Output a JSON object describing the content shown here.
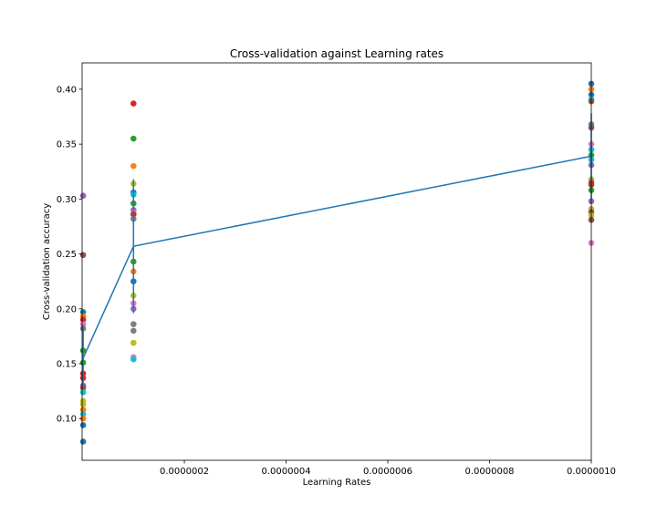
{
  "chart_data": {
    "type": "scatter",
    "title": "Cross-validation against Learning rates",
    "xlabel": "Learning Rates",
    "ylabel": "Cross-validation accuracy",
    "xlim": [
      -1e-09,
      1e-06
    ],
    "ylim": [
      0.062,
      0.424
    ],
    "x_ticks": [
      2e-07,
      4e-07,
      6e-07,
      8e-07,
      1e-06
    ],
    "x_tick_labels": [
      "0.0000002",
      "0.0000004",
      "0.0000006",
      "0.0000008",
      "0.0000010"
    ],
    "y_ticks": [
      0.1,
      0.15,
      0.2,
      0.25,
      0.3,
      0.35,
      0.4
    ],
    "y_tick_labels": [
      "0.10",
      "0.15",
      "0.20",
      "0.25",
      "0.30",
      "0.35",
      "0.40"
    ],
    "grid": false,
    "legend": "none",
    "mean_line": {
      "color": "#1f77b4",
      "x": [
        1e-09,
        1e-07,
        1e-06
      ],
      "y": [
        0.155,
        0.257,
        0.339
      ],
      "errorbars": [
        {
          "x": 1e-09,
          "low": 0.13,
          "high": 0.185
        },
        {
          "x": 1e-07,
          "low": 0.196,
          "high": 0.318
        },
        {
          "x": 1e-06,
          "low": 0.3,
          "high": 0.378
        }
      ]
    },
    "series": [
      {
        "x": 1e-09,
        "points": [
          {
            "y": 0.303,
            "color": "#9467bd"
          },
          {
            "y": 0.249,
            "color": "#8c564b"
          },
          {
            "y": 0.197,
            "color": "#1f77b4"
          },
          {
            "y": 0.193,
            "color": "#ff7f0e"
          },
          {
            "y": 0.19,
            "color": "#d62728"
          },
          {
            "y": 0.186,
            "color": "#e377c2"
          },
          {
            "y": 0.182,
            "color": "#7f7f7f"
          },
          {
            "y": 0.162,
            "color": "#2ca02c"
          },
          {
            "y": 0.151,
            "color": "#2ca02c"
          },
          {
            "y": 0.141,
            "color": "#d62728"
          },
          {
            "y": 0.137,
            "color": "#d62728"
          },
          {
            "y": 0.13,
            "color": "#9467bd"
          },
          {
            "y": 0.128,
            "color": "#8c564b"
          },
          {
            "y": 0.124,
            "color": "#17becf"
          },
          {
            "y": 0.116,
            "color": "#bcbd22"
          },
          {
            "y": 0.113,
            "color": "#bcbd22"
          },
          {
            "y": 0.108,
            "color": "#ff7f0e"
          },
          {
            "y": 0.104,
            "color": "#17becf"
          },
          {
            "y": 0.1,
            "color": "#ff7f0e"
          },
          {
            "y": 0.094,
            "color": "#1f77b4"
          },
          {
            "y": 0.079,
            "color": "#1f77b4"
          }
        ]
      },
      {
        "x": 1e-07,
        "points": [
          {
            "y": 0.387,
            "color": "#d62728"
          },
          {
            "y": 0.355,
            "color": "#2ca02c"
          },
          {
            "y": 0.33,
            "color": "#ff7f0e"
          },
          {
            "y": 0.314,
            "color": "#bcbd22"
          },
          {
            "y": 0.306,
            "color": "#1f77b4"
          },
          {
            "y": 0.304,
            "color": "#17becf"
          },
          {
            "y": 0.296,
            "color": "#2ca02c"
          },
          {
            "y": 0.29,
            "color": "#9467bd"
          },
          {
            "y": 0.288,
            "color": "#e377c2"
          },
          {
            "y": 0.286,
            "color": "#d62728"
          },
          {
            "y": 0.282,
            "color": "#7f7f7f"
          },
          {
            "y": 0.243,
            "color": "#2ca02c"
          },
          {
            "y": 0.234,
            "color": "#ff7f0e"
          },
          {
            "y": 0.225,
            "color": "#1f77b4"
          },
          {
            "y": 0.212,
            "color": "#bcbd22"
          },
          {
            "y": 0.205,
            "color": "#e377c2"
          },
          {
            "y": 0.2,
            "color": "#9467bd"
          },
          {
            "y": 0.186,
            "color": "#7f7f7f"
          },
          {
            "y": 0.18,
            "color": "#7f7f7f"
          },
          {
            "y": 0.169,
            "color": "#bcbd22"
          },
          {
            "y": 0.156,
            "color": "#e377c2"
          },
          {
            "y": 0.154,
            "color": "#17becf"
          }
        ]
      },
      {
        "x": 1e-06,
        "points": [
          {
            "y": 0.405,
            "color": "#1f77b4"
          },
          {
            "y": 0.4,
            "color": "#ff7f0e"
          },
          {
            "y": 0.395,
            "color": "#1f77b4"
          },
          {
            "y": 0.391,
            "color": "#17becf"
          },
          {
            "y": 0.389,
            "color": "#8c564b"
          },
          {
            "y": 0.368,
            "color": "#7f7f7f"
          },
          {
            "y": 0.365,
            "color": "#8c564b"
          },
          {
            "y": 0.35,
            "color": "#e377c2"
          },
          {
            "y": 0.345,
            "color": "#17becf"
          },
          {
            "y": 0.34,
            "color": "#2ca02c"
          },
          {
            "y": 0.336,
            "color": "#17becf"
          },
          {
            "y": 0.331,
            "color": "#9467bd"
          },
          {
            "y": 0.318,
            "color": "#bcbd22"
          },
          {
            "y": 0.315,
            "color": "#8c564b"
          },
          {
            "y": 0.313,
            "color": "#d62728"
          },
          {
            "y": 0.308,
            "color": "#2ca02c"
          },
          {
            "y": 0.298,
            "color": "#9467bd"
          },
          {
            "y": 0.291,
            "color": "#bcbd22"
          },
          {
            "y": 0.288,
            "color": "#8c564b"
          },
          {
            "y": 0.285,
            "color": "#bcbd22"
          },
          {
            "y": 0.281,
            "color": "#8c564b"
          },
          {
            "y": 0.26,
            "color": "#e377c2"
          }
        ]
      }
    ]
  }
}
